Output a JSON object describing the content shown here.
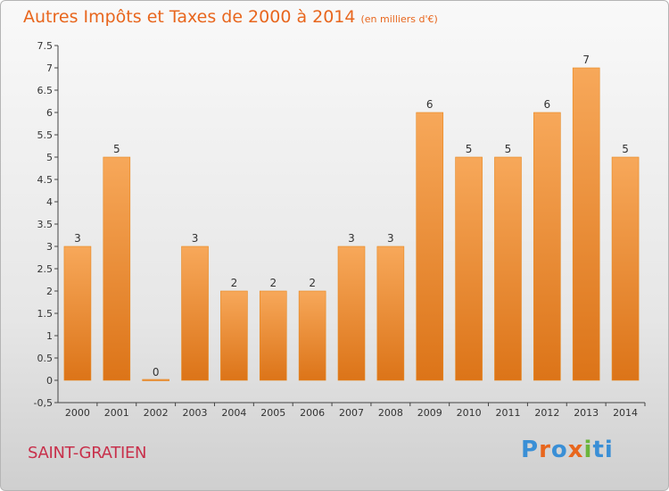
{
  "title": "Autres Impôts et Taxes de 2000 à 2014",
  "subtitle": "(en milliers d'€)",
  "place": "SAINT-GRATIEN",
  "logo": "Proxiti",
  "colors": {
    "bar": "#f08a2a",
    "bar_light": "#f6a653",
    "bar_dark": "#d97219",
    "title": "#e8661d",
    "place": "#c8304b"
  },
  "chart_data": {
    "type": "bar",
    "categories": [
      "2000",
      "2001",
      "2002",
      "2003",
      "2004",
      "2005",
      "2006",
      "2007",
      "2008",
      "2009",
      "2010",
      "2011",
      "2012",
      "2013",
      "2014"
    ],
    "values": [
      3,
      5,
      0,
      3,
      2,
      2,
      2,
      3,
      3,
      6,
      5,
      5,
      6,
      7,
      5
    ],
    "data_labels": [
      "3",
      "5",
      "0",
      "3",
      "2",
      "2",
      "2",
      "3",
      "3",
      "6",
      "5",
      "5",
      "6",
      "7",
      "5"
    ],
    "ylim": [
      -0.5,
      7.5
    ],
    "yticks": [
      "-0,5",
      "0",
      "0.5",
      "1",
      "1.5",
      "2",
      "2.5",
      "3",
      "3.5",
      "4",
      "4.5",
      "5",
      "5.5",
      "6",
      "6.5",
      "7",
      "7.5"
    ],
    "ytick_values": [
      -0.5,
      0,
      0.5,
      1,
      1.5,
      2,
      2.5,
      3,
      3.5,
      4,
      4.5,
      5,
      5.5,
      6,
      6.5,
      7,
      7.5
    ],
    "grid": false
  }
}
